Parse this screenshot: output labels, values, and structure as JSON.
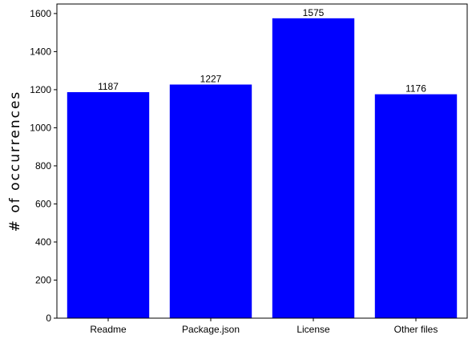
{
  "chart_data": {
    "type": "bar",
    "categories": [
      "Readme",
      "Package.json",
      "License",
      "Other files"
    ],
    "values": [
      1187,
      1227,
      1575,
      1176
    ],
    "data_labels": [
      "1187",
      "1227",
      "1575",
      "1176"
    ],
    "title": "",
    "xlabel": "",
    "ylabel": "# of occurrences",
    "ylim": [
      0,
      1650
    ],
    "yticks": [
      0,
      200,
      400,
      600,
      800,
      1000,
      1200,
      1400,
      1600
    ],
    "grid": false,
    "bar_color": "#0000ff"
  }
}
